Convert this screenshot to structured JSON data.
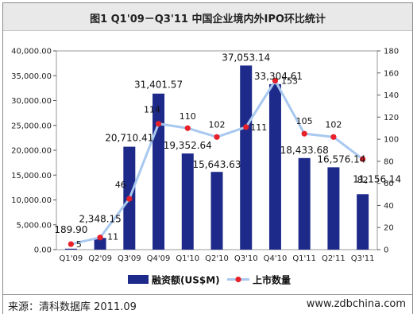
{
  "title": "图1  Q1'09－Q3'11 中国企业境内外IPO环比统计",
  "footer": {
    "source": "来源：清科数据库 2011.09",
    "site": "www.zdbchina.com"
  },
  "colors": {
    "bar": "#1e2a8a",
    "line": "#a8c8f0",
    "marker": "#e8202a",
    "bg": "#ffffff",
    "grid": "#e0e0e0"
  },
  "chart_data": {
    "type": "bar",
    "categories": [
      "Q1'09",
      "Q2'09",
      "Q3'09",
      "Q4'09",
      "Q1'10",
      "Q2'10",
      "Q3'10",
      "Q4'10",
      "Q1'11",
      "Q2'11",
      "Q3'11"
    ],
    "series": [
      {
        "name": "融资额(US$M)",
        "type": "bar",
        "axis": "left",
        "values": [
          189.9,
          2348.15,
          20710.41,
          31401.57,
          19352.64,
          15643.63,
          37053.14,
          33304.61,
          18433.68,
          16576.14,
          11156.14
        ],
        "labels": [
          "189.90",
          "2,348.15",
          "20,710.41",
          "31,401.57",
          "19,352.64",
          "15,643.63",
          "37,053.14",
          "33,304.61",
          "18,433.68",
          "16,576.14",
          "11,156.14"
        ]
      },
      {
        "name": "上市数量",
        "type": "line",
        "axis": "right",
        "values": [
          5,
          11,
          46,
          114,
          110,
          102,
          111,
          153,
          105,
          102,
          82
        ]
      }
    ],
    "left_axis": {
      "min": 0,
      "max": 40000,
      "step": 5000,
      "ticks": [
        "0.00",
        "5,000.00",
        "10,000.00",
        "15,000.00",
        "20,000.00",
        "25,000.00",
        "30,000.00",
        "35,000.00",
        "40,000.00"
      ]
    },
    "right_axis": {
      "min": 0,
      "max": 180,
      "step": 20,
      "ticks": [
        "0",
        "20",
        "40",
        "60",
        "80",
        "100",
        "120",
        "140",
        "160",
        "180"
      ]
    },
    "legend_position": "bottom"
  }
}
